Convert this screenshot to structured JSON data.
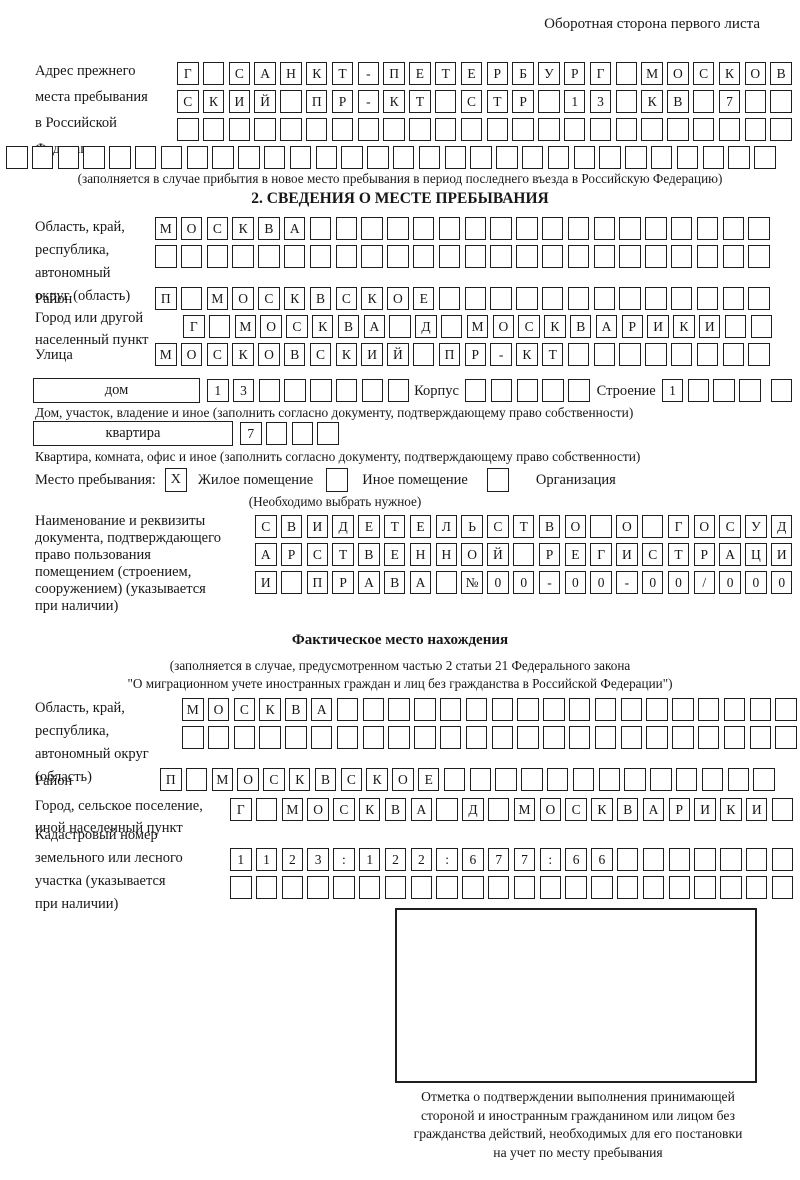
{
  "ink_color": "#1f1f1f",
  "page_note": "Оборотная сторона первого листа",
  "prev_address": {
    "label_lines": [
      "Адрес прежнего",
      "места пребывания",
      "в Российской",
      "Федерации"
    ],
    "rows": [
      "Г САНКТ-ПЕТЕРБУРГ МОСКОВ",
      "СКИЙ ПР-КТ СТР 13 КВ 7  ",
      "                        "
    ],
    "full_row": "                              ",
    "note": "(заполняется в случае прибытия в новое место пребывания в период последнего въезда в Российскую Федерацию)"
  },
  "section2": {
    "title": "2. СВЕДЕНИЯ О МЕСТЕ ПРЕБЫВАНИЯ",
    "region": {
      "label_lines": [
        "Область, край,",
        "республика,",
        "автономный",
        "округ (область)"
      ],
      "rows": [
        "МОСКВА                  ",
        "                        "
      ]
    },
    "district": {
      "label": "Район",
      "row": "П МОСКВСКОЕ             "
    },
    "city": {
      "label_lines": [
        "Город или другой",
        "населенный пункт"
      ],
      "row": "Г МОСКВА Д МОСКВАРИКИ  "
    },
    "street": {
      "label": "Улица",
      "row": "МОСКОВСКИЙ ПР-КТ        "
    },
    "house": {
      "box_label": "дом",
      "cells": "13      ",
      "korpus_label": "Корпус",
      "korpus_cells": "     ",
      "stroenie_label": "Строение",
      "stroenie_cells": "1   ",
      "stroenie_extra_cell": " ",
      "caption": "Дом, участок, владение и иное (заполнить согласно документу, подтверждающему право собственности)"
    },
    "apartment": {
      "box_label": "квартира",
      "cells": "7   ",
      "caption": "Квартира, комната, офис и иное (заполнить согласно документу, подтверждающему право собственности)"
    },
    "stay_type": {
      "label": "Место пребывания:",
      "options": [
        {
          "label": "Жилое помещение",
          "mark": "X"
        },
        {
          "label": "Иное помещение",
          "mark": ""
        },
        {
          "label": "Организация",
          "mark": ""
        }
      ],
      "note": "(Необходимо выбрать нужное)"
    },
    "document": {
      "label_lines": [
        "Наименование и реквизиты",
        "документа, подтверждающего",
        "право пользования",
        "помещением (строением,",
        "сооружением) (указывается",
        "при наличии)"
      ],
      "rows": [
        "СВИДЕТЕЛЬСТВО О ГОСУД",
        "АРСТВЕННОЙ РЕГИСТРАЦИ",
        "И ПРАВА №00-00-00/000"
      ]
    }
  },
  "actual_location": {
    "title": "Фактическое место нахождения",
    "note_lines": [
      "(заполняется в случае, предусмотренном частью 2 статьи 21 Федерального закона",
      "\"О миграционном учете иностранных граждан и лиц без гражданства в Российской Федерации\")"
    ],
    "region": {
      "label_lines": [
        "Область, край,",
        "республика,",
        "автономный округ",
        "(область)"
      ],
      "rows": [
        "МОСКВА                  ",
        "                        "
      ]
    },
    "district": {
      "label": "Район",
      "row": "П МОСКВСКОЕ             "
    },
    "city": {
      "label_lines": [
        "Город, сельское поселение,",
        "иной населенный пункт"
      ],
      "row": "Г МОСКВА Д МОСКВАРИКИ "
    },
    "cadastral": {
      "label_lines": [
        "Кадастровый номер",
        "земельного или лесного",
        "участка (указывается",
        "при наличии)"
      ],
      "rows": [
        "1123:122:677:66       ",
        "                      "
      ]
    }
  },
  "confirmation": {
    "caption_lines": [
      "Отметка о подтверждении выполнения принимающей",
      "стороной и иностранным гражданином или лицом без",
      "гражданства действий, необходимых для его постановки",
      "на учет по месту пребывания"
    ]
  }
}
